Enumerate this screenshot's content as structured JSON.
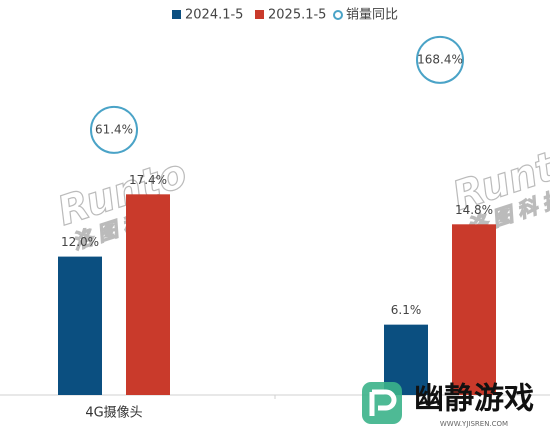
{
  "chart_data": {
    "type": "bar",
    "categories": [
      "4G摄像头",
      null
    ],
    "series": [
      {
        "name": "2024.1-5",
        "color": "#0b4f80",
        "values": [
          12.0,
          6.1
        ],
        "value_labels": [
          "12.0%",
          "6.1%"
        ]
      },
      {
        "name": "2025.1-5",
        "color": "#c93a2b",
        "values": [
          17.4,
          14.8
        ],
        "value_labels": [
          "17.4%",
          "14.8%"
        ]
      },
      {
        "name": "销量同比",
        "type": "scatter",
        "color": "#4aa3c7",
        "axis": "y2",
        "values": [
          61.4,
          168.4
        ],
        "value_labels": [
          "61.4%",
          "168.4%"
        ]
      }
    ],
    "ylim": [
      0,
      30
    ],
    "y2lim": [
      -344,
      185
    ],
    "watermark_texts": [
      "Runto",
      "洛图科技"
    ]
  },
  "overlay": {
    "logo": "幽静游戏",
    "url": "WWW.YJISREN.COM"
  }
}
